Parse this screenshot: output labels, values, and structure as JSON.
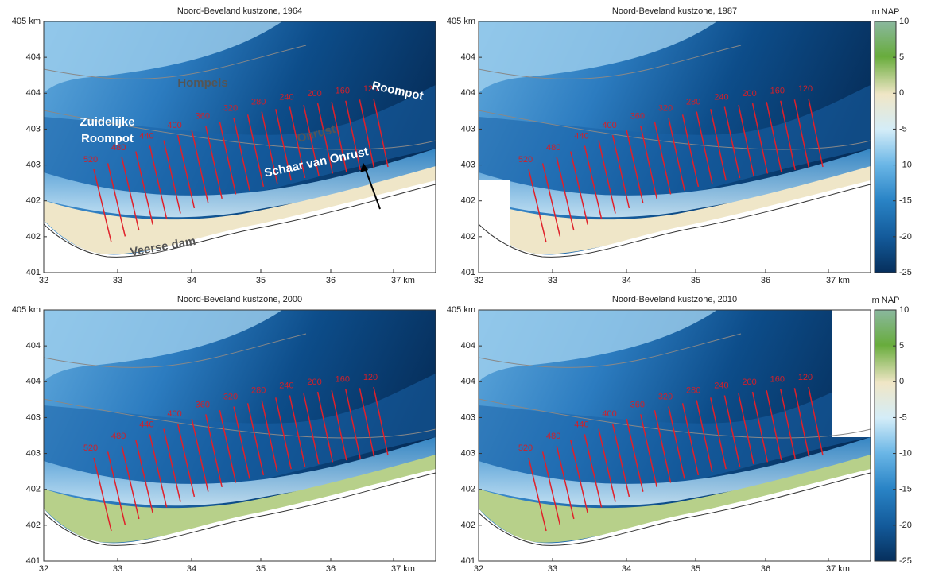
{
  "panels": [
    {
      "title": "Noord-Beveland kustzone, 1964",
      "place_names": [
        "Hompels",
        "Zuidelijke",
        "Roompot",
        "Onrust",
        "Roompot",
        "Schaar van Onrust",
        "Veerse dam"
      ]
    },
    {
      "title": "Noord-Beveland kustzone, 1987"
    },
    {
      "title": "Noord-Beveland kustzone, 2000"
    },
    {
      "title": "Noord-Beveland kustzone, 2010"
    }
  ],
  "transect_labels": [
    "520",
    "480",
    "440",
    "400",
    "360",
    "320",
    "280",
    "240",
    "200",
    "160",
    "120"
  ],
  "x_axis_labels": [
    "32",
    "33",
    "34",
    "35",
    "36",
    "37 km"
  ],
  "y_axis_labels": [
    "405 km",
    "404",
    "404",
    "403",
    "403",
    "402",
    "402",
    "401"
  ],
  "colorbar": {
    "unit": "m NAP",
    "ticks": [
      "10",
      "5",
      "0",
      "-5",
      "-10",
      "-15",
      "-20",
      "-25"
    ]
  }
}
